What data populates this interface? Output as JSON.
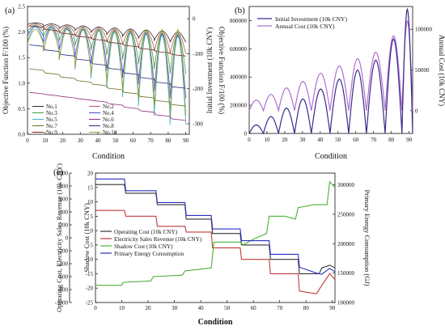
{
  "chart_data": [
    {
      "panel_label": "(a)",
      "type": "line",
      "xlabel": "Condition",
      "ylabel": "Objective Function F/100 (%)",
      "y2label": "Objective Function F/100 (%)",
      "xlim": [
        0,
        92
      ],
      "ylim": [
        0,
        2.5
      ],
      "y2lim": [
        -330,
        35
      ],
      "xticks": [
        0,
        10,
        20,
        30,
        40,
        50,
        60,
        70,
        80,
        90
      ],
      "yticks": [
        0.0,
        0.5,
        1.0,
        1.5,
        2.0,
        2.5
      ],
      "y2ticks": [
        0,
        -100,
        -200,
        -300
      ],
      "legend": [
        "No.1",
        "No.2",
        "No.3",
        "No.4",
        "No.5",
        "No.6",
        "No.7",
        "No.8",
        "No.9",
        "No.10"
      ],
      "series": [
        {
          "name": "No.1",
          "axis": "right",
          "pattern": "scallop",
          "base": 2.18,
          "slope": 0.02,
          "amp": 0.22,
          "color": "#2b2b2b"
        },
        {
          "name": "No.2",
          "axis": "right",
          "pattern": "scallop",
          "base": 2.16,
          "slope": 0.02,
          "amp": 0.45,
          "color": "#c45555"
        },
        {
          "name": "No.3",
          "axis": "right",
          "pattern": "scallop",
          "base": 2.14,
          "slope": 0.02,
          "amp": 0.85,
          "color": "#3e9a3e"
        },
        {
          "name": "No.4",
          "axis": "right",
          "pattern": "scallop",
          "base": 2.12,
          "slope": 0.02,
          "amp": 1.35,
          "color": "#4b4bd0"
        },
        {
          "name": "No.5",
          "axis": "right",
          "pattern": "scallop",
          "base": 2.1,
          "slope": 0.02,
          "amp": 1.9,
          "color": "#3fb0c8"
        },
        {
          "name": "No.6",
          "axis": "left",
          "pattern": "steps",
          "levels": [
            0.82,
            0.78,
            0.74,
            0.7,
            0.66,
            0.6,
            0.53,
            0.46,
            0.38,
            0.3
          ],
          "color": "#8a2d7a"
        },
        {
          "name": "No.7",
          "axis": "left",
          "pattern": "steps",
          "levels": [
            1.28,
            1.2,
            1.12,
            1.05,
            0.98,
            0.9,
            0.82,
            0.74,
            0.66,
            0.58
          ],
          "color": "#6d6d1f"
        },
        {
          "name": "No.8",
          "axis": "left",
          "pattern": "steps",
          "levels": [
            1.75,
            1.65,
            1.56,
            1.47,
            1.38,
            1.29,
            1.2,
            1.11,
            1.02,
            0.93
          ],
          "color": "#1f2f7a"
        },
        {
          "name": "No.9",
          "axis": "left",
          "pattern": "steps",
          "levels": [
            2.12,
            2.05,
            1.98,
            1.92,
            1.86,
            1.8,
            1.74,
            1.68,
            1.62,
            1.56
          ],
          "color": "#7a1f1f"
        },
        {
          "name": "No.10",
          "axis": "left",
          "pattern": "scallop",
          "base": 2.05,
          "slope": 0.0,
          "amp": 1.85,
          "color": "#9a9a2a"
        }
      ]
    },
    {
      "panel_label": "(b)",
      "type": "line",
      "xlabel": "Condition",
      "ylabel": "Initial Investment (10k CNY)",
      "y2label": "Annual Cost (10k CNY)",
      "xlim": [
        0,
        92
      ],
      "ylim": [
        0,
        900000
      ],
      "y2lim": [
        -28000,
        128000
      ],
      "xticks": [
        0,
        10,
        20,
        30,
        40,
        50,
        60,
        70,
        80,
        90
      ],
      "yticks": [
        0,
        200000,
        400000,
        600000,
        800000
      ],
      "y2ticks": [
        0,
        50000,
        100000
      ],
      "legend": [
        "Initial Investment (10k CNY)",
        "Annual Cost (10k CNY)"
      ],
      "colors": {
        "Initial Investment (10k CNY)": "#3a2a8a",
        "Annual Cost (10k CNY)": "#b070d0"
      },
      "peaks_initial_investment": [
        60000,
        120000,
        180000,
        245000,
        315000,
        385000,
        450000,
        520000,
        670000,
        880000
      ],
      "peaks_annual_cost": [
        13000,
        20000,
        28000,
        36000,
        46000,
        55000,
        64000,
        72000,
        92000,
        110000
      ],
      "peak_conditions": [
        4,
        12,
        21,
        30,
        40,
        51,
        61,
        71,
        82,
        90
      ]
    },
    {
      "panel_label": "(c)",
      "type": "line",
      "xlabel": "Condition",
      "ylabel": "Operating Cost, Electricity Sales Revenue (10k CNY)",
      "ylabel_inner": "Shadow Cost (10k CNY)",
      "y2label": "Primary Energy Consumption (GJ)",
      "xlim": [
        0,
        91
      ],
      "ylim_outer": [
        -1000,
        1000
      ],
      "ylim_inner": [
        -25,
        20
      ],
      "y2lim": [
        100000,
        320000
      ],
      "xticks": [
        0,
        10,
        20,
        30,
        40,
        50,
        60,
        70,
        80,
        90
      ],
      "yticks_outer": [
        1000,
        800,
        600,
        400,
        200,
        0,
        -200,
        -400,
        -600,
        -800,
        -1000
      ],
      "yticks_inner": [
        20,
        15,
        10,
        5,
        0,
        -5,
        -10,
        -15,
        -20,
        -25
      ],
      "y2ticks": [
        300000,
        250000,
        200000,
        150000,
        100000
      ],
      "legend": [
        "Operating Cost (10k CNY)",
        "Electricity Sales Revenue (10k CNY)",
        "Shadow Cost (10k CNY)",
        "Primary Energy Consumption"
      ],
      "series": [
        {
          "name": "Operating Cost (10k CNY)",
          "axis": "inner",
          "color": "#333333",
          "points": [
            [
              0,
              16
            ],
            [
              11,
              16
            ],
            [
              11.5,
              13
            ],
            [
              23,
              13
            ],
            [
              23.5,
              9
            ],
            [
              34,
              9
            ],
            [
              34.5,
              4
            ],
            [
              44,
              4
            ],
            [
              44.5,
              -1
            ],
            [
              55,
              -1
            ],
            [
              55.5,
              -5
            ],
            [
              66,
              -5
            ],
            [
              66.5,
              -10
            ],
            [
              77,
              -10
            ],
            [
              77.5,
              -15
            ],
            [
              85,
              -15
            ],
            [
              86,
              -13
            ],
            [
              89,
              -12
            ],
            [
              91,
              -13
            ]
          ]
        },
        {
          "name": "Electricity Sales Revenue (10k CNY)",
          "axis": "inner",
          "color": "#c03a3a",
          "points": [
            [
              0,
              7
            ],
            [
              11,
              7
            ],
            [
              11.5,
              5
            ],
            [
              23,
              5
            ],
            [
              23.5,
              1.5
            ],
            [
              34,
              1.5
            ],
            [
              34.5,
              -0.5
            ],
            [
              44,
              -0.5
            ],
            [
              44.5,
              -6
            ],
            [
              55,
              -6
            ],
            [
              55.5,
              -10
            ],
            [
              66,
              -10
            ],
            [
              66.5,
              -15
            ],
            [
              77,
              -15
            ],
            [
              77.5,
              -21
            ],
            [
              84,
              -22
            ],
            [
              86,
              -19
            ],
            [
              89,
              -15
            ],
            [
              91,
              -17
            ]
          ]
        },
        {
          "name": "Shadow Cost (10k CNY)",
          "axis": "inner",
          "color": "#4caf3a",
          "points": [
            [
              0,
              -19
            ],
            [
              10,
              -19
            ],
            [
              10.5,
              -18
            ],
            [
              21,
              -17.5
            ],
            [
              22,
              -16
            ],
            [
              33,
              -15.5
            ],
            [
              34,
              -14
            ],
            [
              44,
              -13
            ],
            [
              45,
              -4
            ],
            [
              55,
              -4
            ],
            [
              56,
              -5
            ],
            [
              60,
              -3
            ],
            [
              65,
              -1
            ],
            [
              66,
              5
            ],
            [
              72,
              5
            ],
            [
              76,
              4
            ],
            [
              77,
              8
            ],
            [
              83,
              9
            ],
            [
              88,
              9
            ],
            [
              89,
              17
            ],
            [
              91,
              15
            ]
          ]
        },
        {
          "name": "Primary Energy Consumption",
          "axis": "right",
          "color": "#2a2fc4",
          "points": [
            [
              0,
              310000
            ],
            [
              11,
              310000
            ],
            [
              11.5,
              290000
            ],
            [
              23,
              290000
            ],
            [
              23.5,
              270000
            ],
            [
              34,
              270000
            ],
            [
              34.5,
              248000
            ],
            [
              44,
              248000
            ],
            [
              44.5,
              225000
            ],
            [
              55,
              225000
            ],
            [
              55.5,
              205000
            ],
            [
              66,
              205000
            ],
            [
              66.5,
              182000
            ],
            [
              77,
              182000
            ],
            [
              77.5,
              160000
            ],
            [
              84,
              150000
            ],
            [
              86,
              148000
            ],
            [
              89,
              158000
            ],
            [
              91,
              152000
            ]
          ]
        }
      ]
    }
  ]
}
